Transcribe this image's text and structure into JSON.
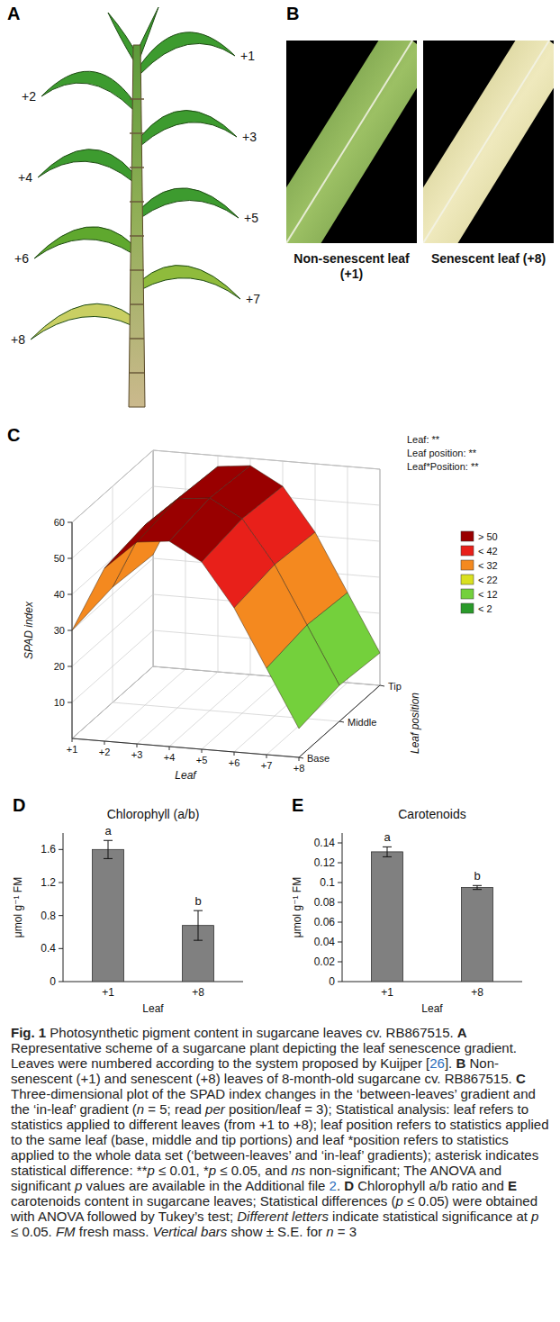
{
  "panel_a": {
    "label": "A",
    "leaf_labels": [
      "+1",
      "+2",
      "+3",
      "+4",
      "+5",
      "+6",
      "+7",
      "+8"
    ]
  },
  "panel_b": {
    "label": "B",
    "photos": [
      {
        "caption": "Non-senescent leaf (+1)"
      },
      {
        "caption": "Senescent leaf (+8)"
      }
    ]
  },
  "panel_labels": [
    "C",
    "D",
    "E"
  ],
  "chart_data": [
    {
      "type": "surface",
      "x_label": "Leaf",
      "y_label": "Leaf position",
      "z_label": "SPAD index",
      "categories": [
        "+1",
        "+2",
        "+3",
        "+4",
        "+5",
        "+6",
        "+7",
        "+8"
      ],
      "positions": [
        "Base",
        "Middle",
        "Tip"
      ],
      "values": [
        [
          30,
          48,
          56,
          57,
          52,
          40,
          24,
          8
        ],
        [
          32,
          50,
          58,
          59,
          54,
          42,
          26,
          10
        ],
        [
          31,
          49,
          57,
          58,
          53,
          41,
          25,
          9
        ]
      ],
      "zlim": [
        0,
        60
      ],
      "zticks": [
        10,
        20,
        30,
        40,
        50,
        60
      ],
      "annotations": [
        "Leaf: **",
        "Leaf position: **",
        "Leaf*Position: **"
      ],
      "colorbar": {
        "labels": [
          "> 50",
          "< 42",
          "< 32",
          "< 22",
          "< 12",
          "< 2"
        ],
        "values": [
          50,
          42,
          32,
          22,
          12,
          2
        ],
        "colors": [
          "#990000",
          "#e8201a",
          "#f4891f",
          "#d9e020",
          "#74d03c",
          "#2a9a2a"
        ]
      }
    },
    {
      "type": "bar",
      "title": "Chlorophyll (a/b)",
      "x_label": "Leaf",
      "y_label": "μmol g⁻¹ FM",
      "categories": [
        "+1",
        "+8"
      ],
      "values": [
        1.6,
        0.68
      ],
      "errors": [
        0.11,
        0.18
      ],
      "letters": [
        "a",
        "b"
      ],
      "color": "#808080",
      "ylim": [
        0,
        1.8
      ],
      "yticks": [
        0,
        0.4,
        0.8,
        1.2,
        1.6
      ]
    },
    {
      "type": "bar",
      "title": "Carotenoids",
      "x_label": "Leaf",
      "y_label": "μmol g⁻¹ FM",
      "categories": [
        "+1",
        "+8"
      ],
      "values": [
        0.131,
        0.095
      ],
      "errors": [
        0.005,
        0.002
      ],
      "letters": [
        "a",
        "b"
      ],
      "color": "#808080",
      "ylim": [
        0,
        0.15
      ],
      "yticks": [
        0,
        0.02,
        0.04,
        0.06,
        0.08,
        0.1,
        0.12,
        0.14
      ]
    }
  ],
  "caption": [
    {
      "text": "Fig. 1",
      "style": "bold"
    },
    {
      "text": "  Photosynthetic pigment content in sugarcane leaves cv. RB867515. ",
      "style": "normal"
    },
    {
      "text": "A",
      "style": "bold"
    },
    {
      "text": " Representative scheme of a sugarcane plant depicting the leaf senescence gradient. Leaves were numbered according to the system proposed by Kuijper [",
      "style": "normal"
    },
    {
      "text": "26",
      "style": "link"
    },
    {
      "text": "]. ",
      "style": "normal"
    },
    {
      "text": "B",
      "style": "bold"
    },
    {
      "text": " Non-senescent (+1) and senescent (+8) leaves of 8-month-old sugarcane cv. RB867515. ",
      "style": "normal"
    },
    {
      "text": "C",
      "style": "bold"
    },
    {
      "text": " Three-dimensional plot of the SPAD index changes in the ‘between-leaves’ gradient and the ‘in-leaf’ gradient (",
      "style": "normal"
    },
    {
      "text": "n",
      "style": "italic"
    },
    {
      "text": " = 5; read ",
      "style": "normal"
    },
    {
      "text": "per",
      "style": "italic"
    },
    {
      "text": " position/leaf = 3); Statistical analysis: leaf refers to statistics applied to different leaves (from +1 to +8); leaf position refers to statistics applied to the same leaf (base, middle and tip portions) and leaf *position refers to statistics applied to the whole data set (‘between-leaves’ and ‘in-leaf’ gradients); asterisk indicates statistical difference: **",
      "style": "normal"
    },
    {
      "text": "p",
      "style": "italic"
    },
    {
      "text": " ≤ 0.01, *",
      "style": "normal"
    },
    {
      "text": "p",
      "style": "italic"
    },
    {
      "text": " ≤ 0.05, and ",
      "style": "normal"
    },
    {
      "text": "ns",
      "style": "italic"
    },
    {
      "text": " non-significant; The ANOVA and significant ",
      "style": "normal"
    },
    {
      "text": "p",
      "style": "italic"
    },
    {
      "text": " values are available in the Additional file ",
      "style": "normal"
    },
    {
      "text": "2",
      "style": "link"
    },
    {
      "text": ". ",
      "style": "normal"
    },
    {
      "text": "D",
      "style": "bold"
    },
    {
      "text": " Chlorophyll a/b ratio and ",
      "style": "normal"
    },
    {
      "text": "E",
      "style": "bold"
    },
    {
      "text": " carotenoids content in sugarcane leaves; Statistical differences (",
      "style": "normal"
    },
    {
      "text": "p",
      "style": "italic"
    },
    {
      "text": " ≤ 0.05) were obtained with ANOVA followed by Tukey’s test; ",
      "style": "normal"
    },
    {
      "text": "Different letters",
      "style": "italic"
    },
    {
      "text": " indicate statistical significance at ",
      "style": "normal"
    },
    {
      "text": "p",
      "style": "italic"
    },
    {
      "text": " ≤ 0.05. ",
      "style": "normal"
    },
    {
      "text": "FM",
      "style": "italic"
    },
    {
      "text": " fresh mass. ",
      "style": "normal"
    },
    {
      "text": "Vertical bars",
      "style": "italic"
    },
    {
      "text": " show ± S.E. for ",
      "style": "normal"
    },
    {
      "text": "n",
      "style": "italic"
    },
    {
      "text": " = 3",
      "style": "normal"
    }
  ]
}
